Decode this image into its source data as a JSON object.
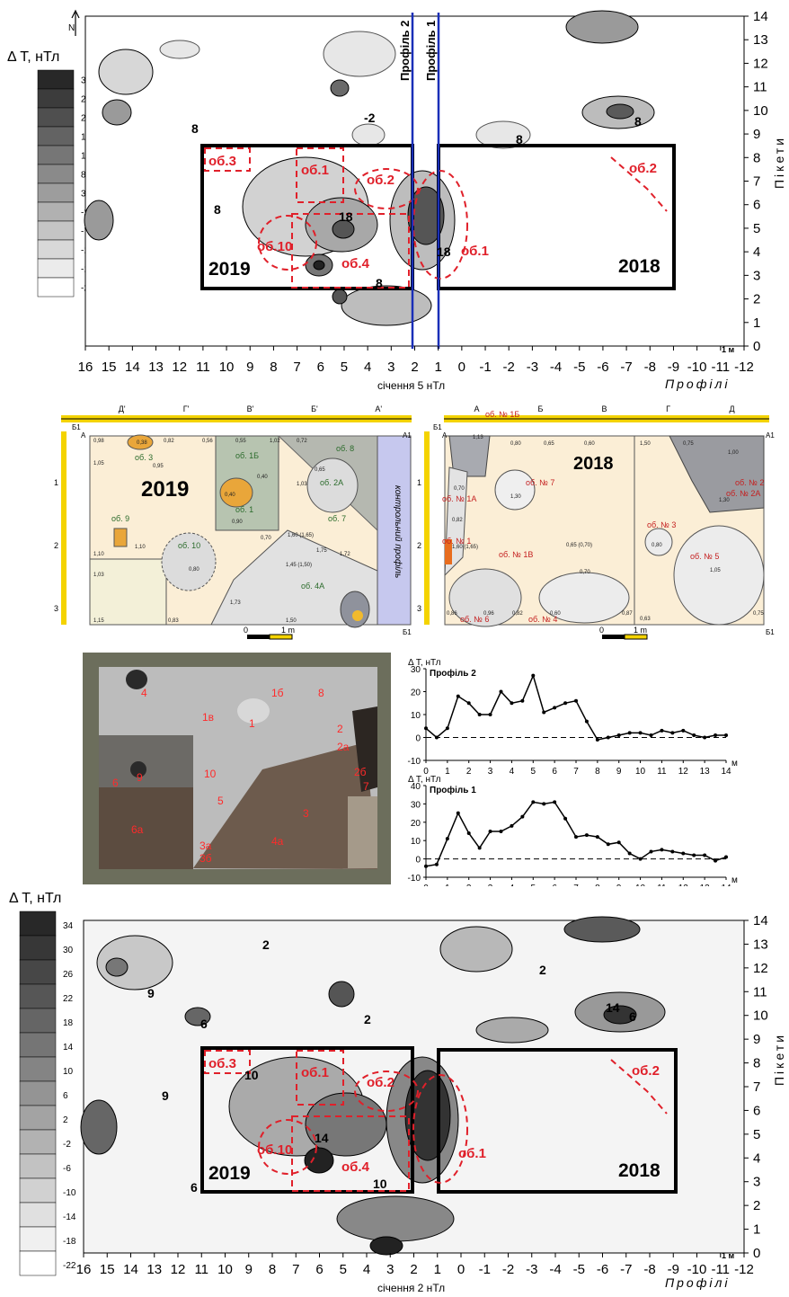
{
  "maps": [
    {
      "id": "top",
      "legend_title": "Δ T, нТл",
      "legend_ticks": [
        "33",
        "28",
        "23",
        "18",
        "13",
        "8",
        "3",
        "-2",
        "-7",
        "-12",
        "-17",
        "-22"
      ],
      "x_ticks": [
        "16",
        "15",
        "14",
        "13",
        "12",
        "11",
        "10",
        "9",
        "8",
        "7",
        "6",
        "5",
        "4",
        "3",
        "2",
        "1",
        "0",
        "-1",
        "-2",
        "-3",
        "-4",
        "-5",
        "-6",
        "-7",
        "-8",
        "-9",
        "-10",
        "-11",
        "-12"
      ],
      "y_ticks": [
        "14",
        "13",
        "12",
        "11",
        "10",
        "9",
        "8",
        "7",
        "6",
        "5",
        "4",
        "3",
        "2",
        "1",
        "0"
      ],
      "x_axis_title": "Профілі",
      "y_axis_title": "Пікети",
      "caption": "січення 5 нТл",
      "scale_label": "1 м",
      "profile_labels": [
        "Профіль 2",
        "Профіль 1"
      ],
      "trench_labels": [
        "2019",
        "2018"
      ],
      "object_labels": [
        "об.3",
        "об.1",
        "об.2",
        "об.10",
        "об.4",
        "об.1",
        "об.2"
      ],
      "contour_labels": [
        "-2",
        "8",
        "8",
        "8",
        "18",
        "18",
        "8",
        "8"
      ]
    },
    {
      "id": "bottom",
      "legend_title": "Δ T, нТл",
      "legend_ticks": [
        "34",
        "30",
        "26",
        "22",
        "18",
        "14",
        "10",
        "6",
        "2",
        "-2",
        "-6",
        "-10",
        "-14",
        "-18",
        "-22"
      ],
      "x_ticks": [
        "16",
        "15",
        "14",
        "13",
        "12",
        "11",
        "10",
        "9",
        "8",
        "7",
        "6",
        "5",
        "4",
        "3",
        "2",
        "1",
        "0",
        "-1",
        "-2",
        "-3",
        "-4",
        "-5",
        "-6",
        "-7",
        "-8",
        "-9",
        "-10",
        "-11",
        "-12"
      ],
      "y_ticks": [
        "14",
        "13",
        "12",
        "11",
        "10",
        "9",
        "8",
        "7",
        "6",
        "5",
        "4",
        "3",
        "2",
        "1",
        "0"
      ],
      "x_axis_title": "Профілі",
      "y_axis_title": "Пікети",
      "caption": "січення 2 нТл",
      "scale_label": "1 м",
      "trench_labels": [
        "2019",
        "2018"
      ],
      "object_labels": [
        "об.3",
        "об.1",
        "об.2",
        "об.10",
        "об.4",
        "об.1",
        "об.2"
      ],
      "contour_labels": [
        "2",
        "9",
        "9",
        "2",
        "2",
        "14",
        "6",
        "10",
        "6",
        "14",
        "10",
        "6"
      ]
    }
  ],
  "plans": {
    "left": {
      "year": "2019",
      "top_letters": [
        "Д'",
        "Г'",
        "В'",
        "Б'",
        "А'"
      ],
      "corner_labels": [
        "Б1",
        "А",
        "А1",
        "Б1"
      ],
      "side_numbers": [
        "1",
        "2",
        "3"
      ],
      "control_label": "контрольний профіль",
      "object_labels": [
        "об. 3",
        "об. 1Б",
        "об. 8",
        "об. 2А",
        "об. 1",
        "об. 7",
        "об. 9",
        "об. 10",
        "об. 4А"
      ],
      "depth_labels": [
        "0,98",
        "0,38",
        "0,82",
        "0,56",
        "0,55",
        "1,02",
        "0,72",
        "1,05",
        "0,65",
        "0,95",
        "1,03",
        "0,40",
        "0,90",
        "1,60 (1,65)",
        "0,70",
        "1,75",
        "1,10",
        "1,45 (1,50)",
        "1,72",
        "1,03",
        "1,73",
        "1,15",
        "0,83",
        "1,50",
        "0,80",
        "1,10",
        "0,40"
      ],
      "scale_zero": "0",
      "scale_unit": "1 m"
    },
    "right": {
      "year": "2018",
      "top_letters": [
        "А",
        "Б",
        "В",
        "Г",
        "Д"
      ],
      "corner_labels": [
        "Б1",
        "А",
        "А1",
        "Б1"
      ],
      "side_numbers": [
        "1",
        "2",
        "3"
      ],
      "object_labels": [
        "об. № 1Б",
        "об. № 1А",
        "об. № 7",
        "об. № 1",
        "об. № 1В",
        "об. № 2",
        "об. № 2А",
        "об. № 3",
        "об. № 5",
        "об. № 6",
        "об. № 4"
      ],
      "depth_labels": [
        "1,13",
        "0,80",
        "0,65",
        "0,60",
        "1,50",
        "0,75",
        "1,00",
        "1,30",
        "1,30",
        "0,82",
        "1,60 (1,65)",
        "0,65 (0,70)",
        "0,80",
        "1,05",
        "0,86",
        "0,96",
        "0,82",
        "0,70",
        "0,60",
        "0,87",
        "0,63",
        "0,75",
        "0,70"
      ],
      "scale_zero": "0",
      "scale_unit": "1 m"
    }
  },
  "photo_labels": [
    "4",
    "1в",
    "1б",
    "8",
    "1",
    "2",
    "2а",
    "6",
    "9",
    "10",
    "2б",
    "7",
    "6а",
    "5",
    "3",
    "4а",
    "3а",
    "3б"
  ],
  "chart_data": [
    {
      "type": "line",
      "title": "Профіль 2",
      "ylabel": "Δ T, нТл",
      "xlabel": "м",
      "xlim": [
        0,
        14
      ],
      "ylim": [
        -10,
        30
      ],
      "x_ticks": [
        "0",
        "1",
        "2",
        "3",
        "4",
        "5",
        "6",
        "7",
        "8",
        "9",
        "10",
        "11",
        "12",
        "13",
        "14"
      ],
      "y_ticks": [
        "30",
        "20",
        "10",
        "0",
        "-10"
      ],
      "x": [
        0,
        0.5,
        1,
        1.5,
        2,
        2.5,
        3,
        3.5,
        4,
        4.5,
        5,
        5.5,
        6,
        6.5,
        7,
        7.5,
        8,
        8.5,
        9,
        9.5,
        10,
        10.5,
        11,
        11.5,
        12,
        12.5,
        13,
        13.5,
        14
      ],
      "y": [
        4,
        0,
        4,
        18,
        15,
        10,
        10,
        20,
        15,
        16,
        27,
        11,
        13,
        15,
        16,
        7,
        -1,
        0,
        1,
        2,
        2,
        1,
        3,
        2,
        3,
        1,
        0,
        1,
        1
      ]
    },
    {
      "type": "line",
      "title": "Профіль 1",
      "ylabel": "Δ T, нТл",
      "xlabel": "м",
      "xlim": [
        0,
        14
      ],
      "ylim": [
        -10,
        40
      ],
      "x_ticks": [
        "0",
        "1",
        "2",
        "3",
        "4",
        "5",
        "6",
        "7",
        "8",
        "9",
        "10",
        "11",
        "12",
        "13",
        "14"
      ],
      "y_ticks": [
        "40",
        "30",
        "20",
        "10",
        "0",
        "-10"
      ],
      "x": [
        0,
        0.5,
        1,
        1.5,
        2,
        2.5,
        3,
        3.5,
        4,
        4.5,
        5,
        5.5,
        6,
        6.5,
        7,
        7.5,
        8,
        8.5,
        9,
        9.5,
        10,
        10.5,
        11,
        11.5,
        12,
        12.5,
        13,
        13.5,
        14
      ],
      "y": [
        -4,
        -3,
        11,
        25,
        14,
        6,
        15,
        15,
        18,
        23,
        31,
        30,
        31,
        22,
        12,
        13,
        12,
        8,
        9,
        3,
        0,
        4,
        5,
        4,
        3,
        2,
        2,
        -1,
        1
      ]
    }
  ]
}
